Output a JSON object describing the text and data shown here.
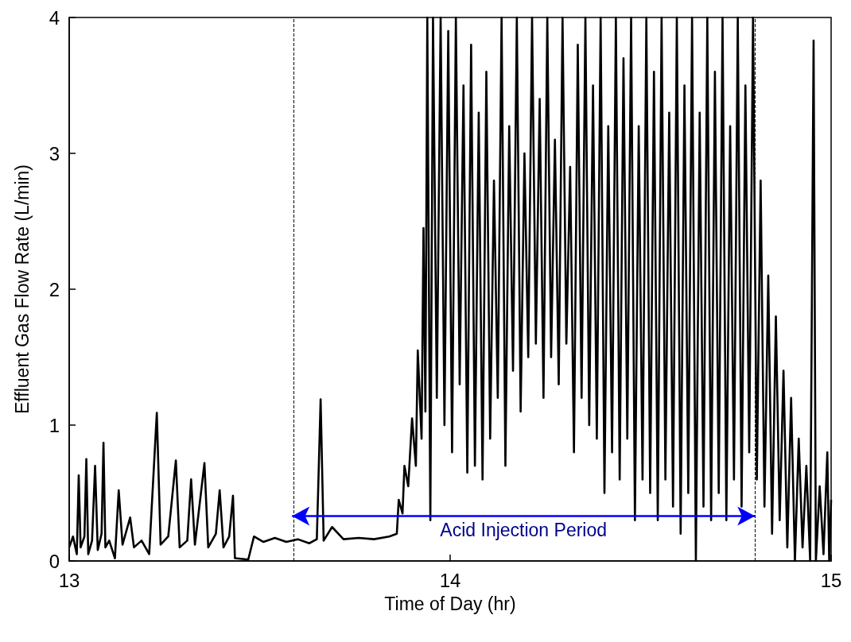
{
  "chart_data": {
    "type": "line",
    "xlabel": "Time of Day (hr)",
    "ylabel": "Effluent Gas Flow Rate (L/min)",
    "xlim": [
      13,
      15
    ],
    "xticks": [
      13,
      14,
      15
    ],
    "ylim": [
      0,
      4
    ],
    "yticks": [
      0,
      1,
      2,
      3,
      4
    ],
    "grid": false,
    "marker": "none",
    "line_style": "solid",
    "ref_lines": [
      {
        "axis": "x",
        "value": 13.585,
        "color": "#000000",
        "line_style": "dashed"
      },
      {
        "axis": "x",
        "value": 14.8,
        "color": "#000000",
        "line_style": "dashed"
      }
    ],
    "annotations": [
      "Acid Injection Period"
    ],
    "series": [
      {
        "color": "#000000",
        "x": [
          13.0,
          13.01,
          13.02,
          13.025,
          13.03,
          13.04,
          13.045,
          13.05,
          13.06,
          13.068,
          13.075,
          13.085,
          13.09,
          13.095,
          13.105,
          13.12,
          13.13,
          13.14,
          13.16,
          13.17,
          13.19,
          13.21,
          13.23,
          13.24,
          13.26,
          13.28,
          13.29,
          13.31,
          13.32,
          13.33,
          13.355,
          13.365,
          13.385,
          13.395,
          13.405,
          13.42,
          13.43,
          13.435,
          13.47,
          13.485,
          13.51,
          13.54,
          13.57,
          13.6,
          13.63,
          13.65,
          13.66,
          13.668,
          13.69,
          13.72,
          13.76,
          13.8,
          13.84,
          13.86,
          13.865,
          13.875,
          13.88,
          13.89,
          13.9,
          13.91,
          13.915,
          13.925,
          13.93,
          13.935,
          13.94,
          13.948,
          13.955,
          13.965,
          13.975,
          13.985,
          13.995,
          14.005,
          14.015,
          14.025,
          14.035,
          14.045,
          14.055,
          14.065,
          14.075,
          14.085,
          14.095,
          14.105,
          14.115,
          14.125,
          14.135,
          14.145,
          14.155,
          14.165,
          14.175,
          14.185,
          14.195,
          14.205,
          14.215,
          14.225,
          14.235,
          14.245,
          14.255,
          14.265,
          14.275,
          14.285,
          14.295,
          14.305,
          14.315,
          14.325,
          14.335,
          14.345,
          14.355,
          14.365,
          14.375,
          14.385,
          14.395,
          14.405,
          14.415,
          14.425,
          14.435,
          14.445,
          14.455,
          14.465,
          14.475,
          14.485,
          14.495,
          14.505,
          14.515,
          14.525,
          14.535,
          14.545,
          14.555,
          14.565,
          14.575,
          14.585,
          14.595,
          14.605,
          14.615,
          14.625,
          14.635,
          14.645,
          14.655,
          14.665,
          14.675,
          14.685,
          14.695,
          14.705,
          14.715,
          14.725,
          14.735,
          14.745,
          14.755,
          14.765,
          14.775,
          14.785,
          14.795,
          14.805,
          14.815,
          14.825,
          14.835,
          14.845,
          14.855,
          14.865,
          14.875,
          14.885,
          14.895,
          14.905,
          14.915,
          14.925,
          14.935,
          14.945,
          14.954,
          14.96,
          14.97,
          14.98,
          14.99,
          14.995,
          15.0
        ],
        "values": [
          0.1,
          0.18,
          0.05,
          0.63,
          0.1,
          0.18,
          0.75,
          0.05,
          0.15,
          0.7,
          0.08,
          0.2,
          0.87,
          0.1,
          0.15,
          0.02,
          0.52,
          0.12,
          0.32,
          0.1,
          0.15,
          0.05,
          1.09,
          0.12,
          0.18,
          0.74,
          0.1,
          0.15,
          0.6,
          0.12,
          0.72,
          0.1,
          0.2,
          0.52,
          0.1,
          0.18,
          0.48,
          0.02,
          0.01,
          0.18,
          0.14,
          0.17,
          0.14,
          0.16,
          0.13,
          0.16,
          1.19,
          0.15,
          0.25,
          0.16,
          0.17,
          0.16,
          0.18,
          0.2,
          0.45,
          0.35,
          0.7,
          0.55,
          1.05,
          0.7,
          1.55,
          0.9,
          2.45,
          1.1,
          4.0,
          0.3,
          4.0,
          1.2,
          4.0,
          1.0,
          3.9,
          0.8,
          4.0,
          1.3,
          3.5,
          0.65,
          3.8,
          0.7,
          3.3,
          0.6,
          3.6,
          0.9,
          2.8,
          1.2,
          4.0,
          0.7,
          3.2,
          1.4,
          4.0,
          1.1,
          3.0,
          1.5,
          4.0,
          1.6,
          3.4,
          1.2,
          4.0,
          1.5,
          3.1,
          1.3,
          4.0,
          1.6,
          2.9,
          0.8,
          3.8,
          1.2,
          4.0,
          1.0,
          3.5,
          0.9,
          4.0,
          0.5,
          3.2,
          0.8,
          4.0,
          0.6,
          3.7,
          0.9,
          4.0,
          0.3,
          3.2,
          0.6,
          4.0,
          0.5,
          3.6,
          0.3,
          4.0,
          0.6,
          3.3,
          0.4,
          4.0,
          0.2,
          3.5,
          0.5,
          4.0,
          0.0,
          3.3,
          0.4,
          4.0,
          0.3,
          3.6,
          0.5,
          4.0,
          0.3,
          3.2,
          0.6,
          4.0,
          0.4,
          3.5,
          0.8,
          4.0,
          0.6,
          2.8,
          0.4,
          2.1,
          0.2,
          1.8,
          0.3,
          1.4,
          0.1,
          1.2,
          0.0,
          0.9,
          0.1,
          0.7,
          0.0,
          3.83,
          0.0,
          0.55,
          0.05,
          0.8,
          0.0,
          0.45
        ]
      }
    ]
  }
}
